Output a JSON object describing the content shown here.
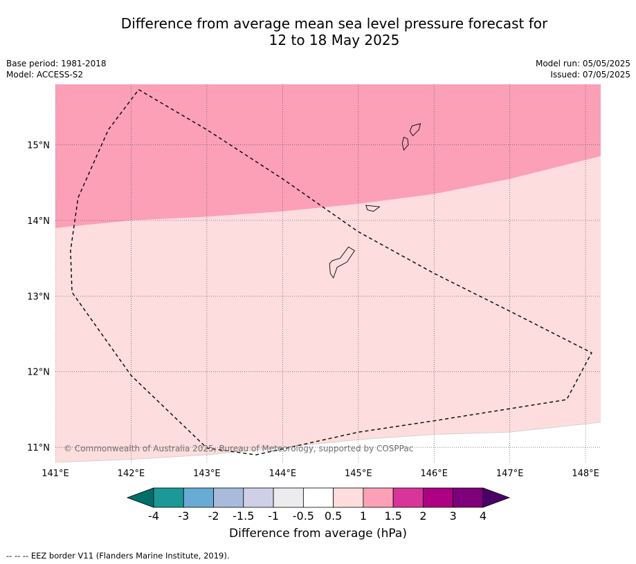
{
  "title_line1": "Difference from average mean sea level pressure forecast for",
  "title_line2": "12 to 18 May 2025",
  "base_period": "Base period: 1981-2018",
  "model": "Model: ACCESS-S2",
  "model_run": "Model run: 05/05/2025",
  "issued": "Issued: 07/05/2025",
  "copyright": "© Commonwealth of Australia 2025, Bureau of Meteorology, supported by COSPPac",
  "footer": "--  --  -- EEZ border V11 (Flanders Marine Institute, 2019).",
  "map": {
    "lon_range": [
      141.0,
      148.2
    ],
    "lat_range": [
      10.8,
      15.8
    ],
    "lon_ticks": [
      141,
      142,
      143,
      144,
      145,
      146,
      147,
      148
    ],
    "lon_labels": [
      "141°E",
      "142°E",
      "143°E",
      "144°E",
      "145°E",
      "146°E",
      "147°E",
      "148°E"
    ],
    "lat_ticks": [
      11,
      12,
      13,
      14,
      15
    ],
    "lat_labels": [
      "11°N",
      "12°N",
      "13°N",
      "14°N",
      "15°N"
    ],
    "regions": [
      {
        "name": "diff-0.5-to-1",
        "color": "#fddddd",
        "lower_boundary": [
          [
            141.0,
            10.8
          ],
          [
            142.0,
            10.84
          ],
          [
            143.0,
            10.9
          ],
          [
            144.0,
            11.0
          ],
          [
            145.0,
            11.1
          ],
          [
            146.0,
            11.17
          ],
          [
            147.0,
            11.2
          ],
          [
            148.2,
            11.33
          ]
        ]
      },
      {
        "name": "diff-1-to-1.5",
        "color": "#fba0b7",
        "lower_boundary": [
          [
            141.0,
            13.9
          ],
          [
            142.0,
            14.0
          ],
          [
            143.0,
            14.05
          ],
          [
            144.0,
            14.12
          ],
          [
            145.0,
            14.22
          ],
          [
            146.0,
            14.35
          ],
          [
            147.0,
            14.55
          ],
          [
            148.2,
            14.85
          ]
        ]
      }
    ],
    "eez_border": [
      [
        142.1,
        15.73
      ],
      [
        143.0,
        15.2
      ],
      [
        144.0,
        14.55
      ],
      [
        145.0,
        13.85
      ],
      [
        146.0,
        13.3
      ],
      [
        147.0,
        12.8
      ],
      [
        148.08,
        12.25
      ],
      [
        147.75,
        11.63
      ],
      [
        146.0,
        11.35
      ],
      [
        145.0,
        11.2
      ],
      [
        143.65,
        10.9
      ],
      [
        143.0,
        10.99
      ],
      [
        142.0,
        11.95
      ],
      [
        141.22,
        13.05
      ],
      [
        141.2,
        13.6
      ],
      [
        141.3,
        14.3
      ],
      [
        141.7,
        15.2
      ],
      [
        142.1,
        15.73
      ]
    ],
    "islands": [
      [
        [
          145.71,
          15.25
        ],
        [
          145.82,
          15.28
        ],
        [
          145.8,
          15.2
        ],
        [
          145.72,
          15.12
        ],
        [
          145.68,
          15.18
        ]
      ],
      [
        [
          145.6,
          15.1
        ],
        [
          145.65,
          15.08
        ],
        [
          145.66,
          15.0
        ],
        [
          145.6,
          14.93
        ],
        [
          145.58,
          15.02
        ]
      ],
      [
        [
          145.1,
          14.2
        ],
        [
          145.28,
          14.18
        ],
        [
          145.2,
          14.12
        ],
        [
          145.12,
          14.14
        ]
      ],
      [
        [
          144.87,
          13.65
        ],
        [
          144.95,
          13.6
        ],
        [
          144.85,
          13.45
        ],
        [
          144.72,
          13.38
        ],
        [
          144.67,
          13.24
        ],
        [
          144.63,
          13.3
        ],
        [
          144.62,
          13.43
        ],
        [
          144.66,
          13.47
        ],
        [
          144.76,
          13.5
        ]
      ]
    ],
    "islands_color": "#000000",
    "grid_color": "#555555"
  },
  "colorbar": {
    "label": "Difference from average (hPa)",
    "under_color": "#006f6a",
    "over_color": "#4b0068",
    "colors": [
      "#1c9898",
      "#68abd4",
      "#a8bbdc",
      "#cfd0e8",
      "#ecebee",
      "#ffffff",
      "#fddddd",
      "#fba0b7",
      "#d8359a",
      "#ad0082",
      "#7e007b"
    ],
    "ticks": [
      "-4",
      "-3",
      "-2",
      "-1.5",
      "-1",
      "-0.5",
      "0.5",
      "1",
      "1.5",
      "2",
      "3",
      "4"
    ]
  }
}
